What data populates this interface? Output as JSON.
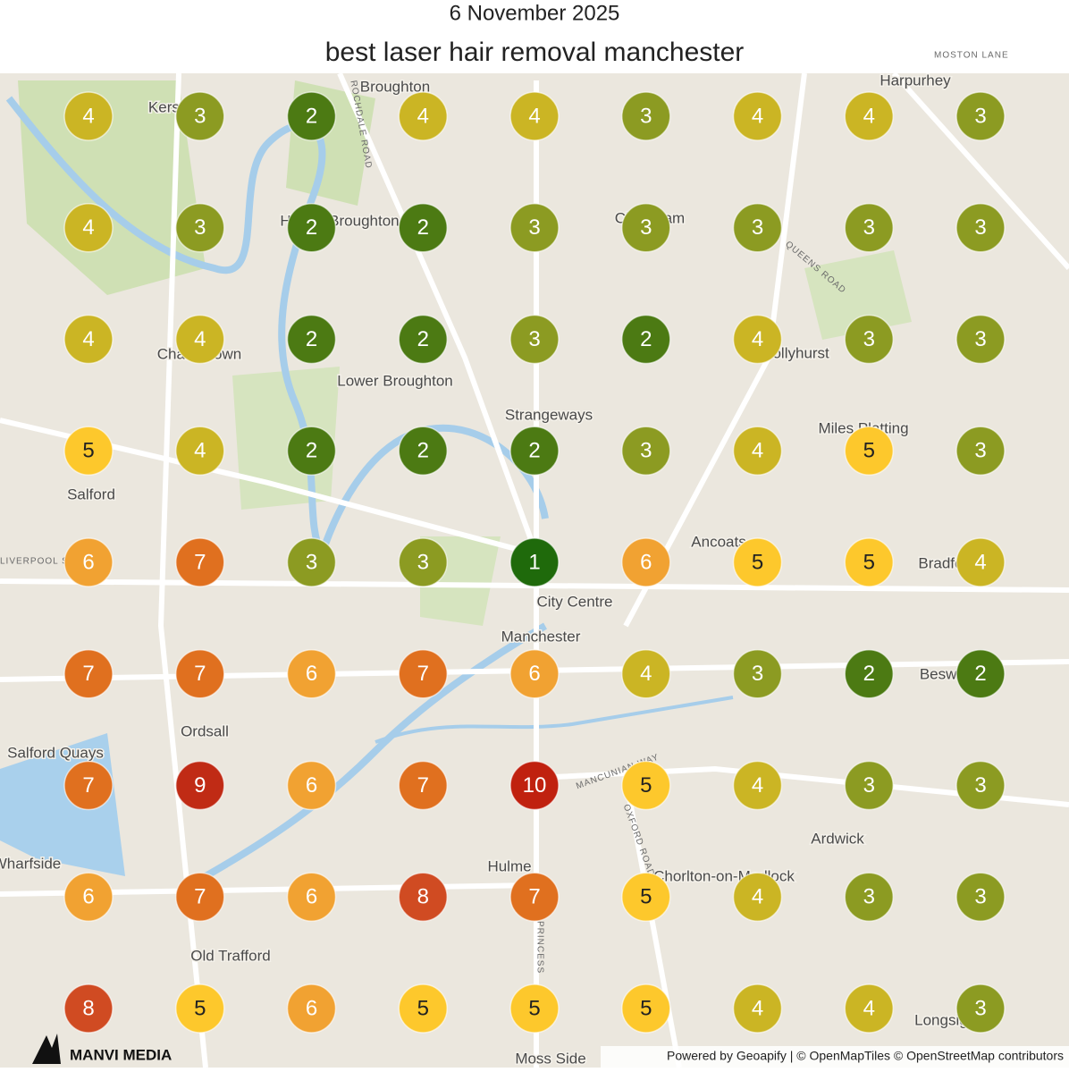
{
  "header": {
    "date": "6 November 2025",
    "title": "best laser hair removal manchester"
  },
  "grid": {
    "rows": [
      [
        4,
        3,
        2,
        4,
        4,
        3,
        4,
        4,
        3
      ],
      [
        4,
        3,
        2,
        2,
        3,
        3,
        3,
        3,
        3
      ],
      [
        4,
        4,
        2,
        2,
        3,
        2,
        4,
        3,
        3
      ],
      [
        5,
        4,
        2,
        2,
        2,
        3,
        4,
        5,
        3
      ],
      [
        6,
        7,
        3,
        3,
        1,
        6,
        5,
        5,
        4
      ],
      [
        7,
        7,
        6,
        7,
        6,
        4,
        3,
        2,
        2
      ],
      [
        7,
        9,
        6,
        7,
        10,
        5,
        4,
        3,
        3
      ],
      [
        6,
        7,
        6,
        8,
        7,
        5,
        4,
        3,
        3
      ],
      [
        8,
        5,
        6,
        5,
        5,
        5,
        4,
        4,
        3
      ]
    ],
    "rank_colors": {
      "1": "#1f6a0b",
      "2": "#4c7a13",
      "3": "#8c9b22",
      "4": "#cbb524",
      "5": "#fdc82c",
      "6": "#f1a232",
      "7": "#e0701f",
      "8": "#d04b22",
      "9": "#c02b15",
      "10": "#c0210f"
    }
  },
  "places": [
    "Broughton",
    "Harpurhey",
    "Kersal",
    "Higher Broughton",
    "Cheetham",
    "Charlestown",
    "Lower Broughton",
    "Collyhurst",
    "Strangeways",
    "Miles Platting",
    "Salford",
    "Ancoats",
    "Bradford",
    "City Centre",
    "Manchester",
    "Beswick",
    "Ordsall",
    "Salford Quays",
    "Ardwick",
    "Hulme",
    "Chorlton-on-Medlock",
    "Old Trafford",
    "Moss Side",
    "Longsight",
    "Wharfside"
  ],
  "roads": [
    "ROCHDALE ROAD",
    "QUEENS ROAD",
    "MOSTON LANE",
    "MANCUNIAN WAY",
    "OXFORD ROAD",
    "LIVERPOOL ST.",
    "PRINCESS"
  ],
  "footer": {
    "logo": "MANVI MEDIA",
    "attribution": "Powered by Geoapify | © OpenMapTiles © OpenStreetMap contributors"
  }
}
